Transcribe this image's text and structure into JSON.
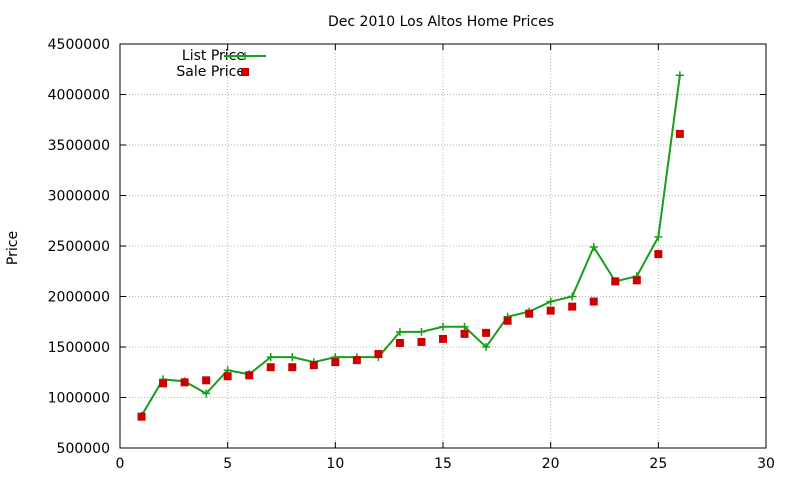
{
  "chart_data": {
    "type": "line",
    "title": "Dec 2010 Los Altos Home Prices",
    "xlabel": "",
    "ylabel": "Price",
    "xlim": [
      0,
      30
    ],
    "ylim": [
      500000,
      4500000
    ],
    "x_ticks": [
      0,
      5,
      10,
      15,
      20,
      25,
      30
    ],
    "y_ticks": [
      500000,
      1000000,
      1500000,
      2000000,
      2500000,
      3000000,
      3500000,
      4000000,
      4500000
    ],
    "grid": true,
    "legend_position": "top-left",
    "series": [
      {
        "name": "List Price",
        "style": "line-with-plus-markers",
        "color": "#1a9e1a",
        "x": [
          1,
          2,
          3,
          4,
          5,
          6,
          7,
          8,
          9,
          10,
          11,
          12,
          13,
          14,
          15,
          16,
          17,
          18,
          19,
          20,
          21,
          22,
          23,
          24,
          25,
          26
        ],
        "values": [
          820000,
          1180000,
          1160000,
          1040000,
          1270000,
          1230000,
          1400000,
          1400000,
          1350000,
          1400000,
          1400000,
          1400000,
          1650000,
          1650000,
          1700000,
          1700000,
          1500000,
          1800000,
          1850000,
          1950000,
          2000000,
          2490000,
          2150000,
          2200000,
          2590000,
          4190000
        ]
      },
      {
        "name": "Sale Price",
        "style": "square-markers",
        "color": "#cc0000",
        "x": [
          1,
          2,
          3,
          4,
          5,
          6,
          7,
          8,
          9,
          10,
          11,
          12,
          13,
          14,
          15,
          16,
          17,
          18,
          19,
          20,
          21,
          22,
          23,
          24,
          25,
          26
        ],
        "values": [
          810000,
          1140000,
          1150000,
          1170000,
          1210000,
          1220000,
          1300000,
          1300000,
          1320000,
          1350000,
          1370000,
          1430000,
          1540000,
          1550000,
          1580000,
          1630000,
          1640000,
          1760000,
          1830000,
          1860000,
          1900000,
          1950000,
          2150000,
          2160000,
          2420000,
          3610000
        ]
      }
    ]
  }
}
